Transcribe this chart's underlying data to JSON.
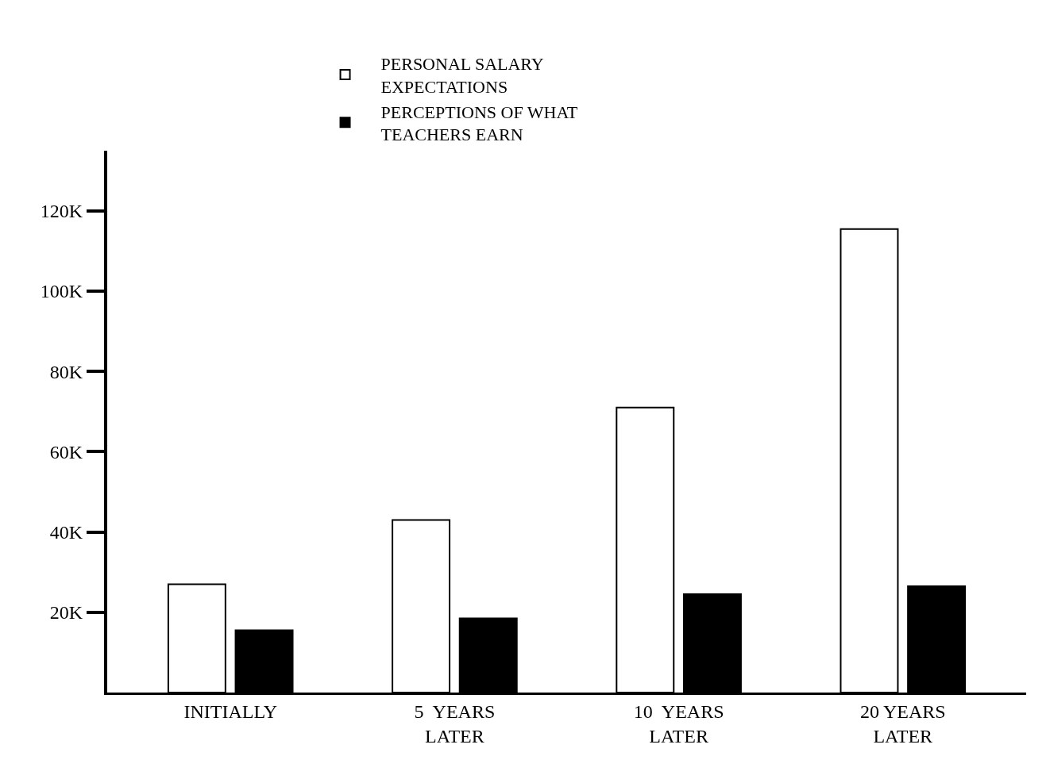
{
  "chart_data": {
    "type": "bar",
    "categories": [
      "INITIALLY",
      "5  YEARS\nLATER",
      "10  YEARS\nLATER",
      "20 YEARS\nLATER"
    ],
    "series": [
      {
        "name": "PERSONAL SALARY\nEXPECTATIONS",
        "color": "#ffffff",
        "values": [
          27,
          43,
          71,
          115.5
        ]
      },
      {
        "name": "PERCEPTIONS OF WHAT\nTEACHERS EARN",
        "color": "#000000",
        "values": [
          15.5,
          18.5,
          24.5,
          26.5
        ]
      }
    ],
    "ylim": [
      0,
      135
    ],
    "yticks": [
      {
        "value": 20,
        "label": "20K"
      },
      {
        "value": 40,
        "label": "40K"
      },
      {
        "value": 60,
        "label": "60K"
      },
      {
        "value": 80,
        "label": "80K"
      },
      {
        "value": 100,
        "label": "100K"
      },
      {
        "value": 120,
        "label": "120K"
      }
    ],
    "grid": false,
    "legend": "top"
  }
}
